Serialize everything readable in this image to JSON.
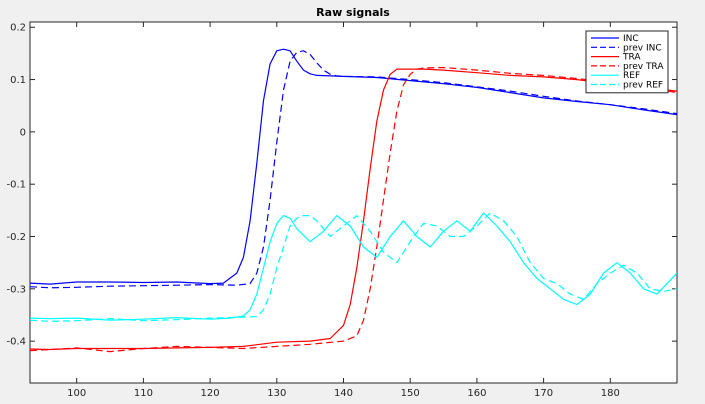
{
  "chart_data": {
    "type": "line",
    "title": "Raw signals",
    "xlabel": "",
    "ylabel": "",
    "xlim": [
      93,
      190
    ],
    "ylim": [
      -0.48,
      0.21
    ],
    "xticks": [
      100,
      110,
      120,
      130,
      140,
      150,
      160,
      170,
      180
    ],
    "yticks": [
      -0.4,
      -0.3,
      -0.2,
      -0.1,
      0,
      0.1,
      0.2
    ],
    "ytick_labels": [
      "-0.4",
      "-0.3",
      "-0.2",
      "-0.1",
      "0",
      "0.1",
      "0.2"
    ],
    "grid": false,
    "legend_position": "top-right",
    "series": [
      {
        "name": "INC",
        "color": "#0000ff",
        "dash": "solid",
        "x": [
          93,
          96,
          100,
          105,
          110,
          115,
          120,
          122,
          124,
          125,
          126,
          127,
          128,
          129,
          130,
          131,
          132,
          133,
          134,
          135,
          136,
          138,
          140,
          145,
          150,
          155,
          160,
          165,
          170,
          175,
          180,
          185,
          190
        ],
        "y": [
          -0.289,
          -0.291,
          -0.287,
          -0.287,
          -0.288,
          -0.287,
          -0.29,
          -0.289,
          -0.27,
          -0.24,
          -0.17,
          -0.06,
          0.06,
          0.13,
          0.155,
          0.158,
          0.155,
          0.135,
          0.118,
          0.111,
          0.108,
          0.107,
          0.106,
          0.104,
          0.098,
          0.092,
          0.085,
          0.075,
          0.065,
          0.058,
          0.052,
          0.042,
          0.033
        ]
      },
      {
        "name": "prev INC",
        "color": "#0000ff",
        "dash": "dashed",
        "x": [
          93,
          96,
          100,
          105,
          110,
          115,
          120,
          124,
          126,
          127,
          128,
          129,
          130,
          131,
          132,
          133,
          134,
          135,
          136,
          137,
          138,
          139,
          140,
          145,
          150,
          155,
          160,
          165,
          170,
          175,
          180,
          185,
          190
        ],
        "y": [
          -0.296,
          -0.298,
          -0.297,
          -0.295,
          -0.294,
          -0.293,
          -0.292,
          -0.293,
          -0.29,
          -0.27,
          -0.22,
          -0.13,
          -0.02,
          0.08,
          0.135,
          0.152,
          0.155,
          0.148,
          0.132,
          0.118,
          0.11,
          0.107,
          0.106,
          0.105,
          0.1,
          0.094,
          0.086,
          0.078,
          0.068,
          0.059,
          0.052,
          0.044,
          0.035
        ]
      },
      {
        "name": "TRA",
        "color": "#ff0000",
        "dash": "solid",
        "x": [
          93,
          96,
          100,
          105,
          110,
          115,
          120,
          125,
          130,
          135,
          138,
          140,
          141,
          142,
          143,
          144,
          145,
          146,
          147,
          148,
          149,
          150,
          152,
          155,
          160,
          165,
          170,
          175,
          180,
          185,
          190
        ],
        "y": [
          -0.415,
          -0.416,
          -0.414,
          -0.414,
          -0.414,
          -0.413,
          -0.412,
          -0.41,
          -0.402,
          -0.4,
          -0.395,
          -0.37,
          -0.33,
          -0.26,
          -0.17,
          -0.07,
          0.02,
          0.08,
          0.11,
          0.12,
          0.12,
          0.12,
          0.12,
          0.118,
          0.113,
          0.108,
          0.105,
          0.1,
          0.092,
          0.085,
          0.078
        ]
      },
      {
        "name": "prev TRA",
        "color": "#ff0000",
        "dash": "dashed",
        "x": [
          93,
          96,
          100,
          105,
          110,
          115,
          120,
          125,
          130,
          135,
          140,
          142,
          143,
          144,
          145,
          146,
          147,
          148,
          149,
          150,
          151,
          152,
          155,
          160,
          165,
          170,
          175,
          180,
          185,
          190
        ],
        "y": [
          -0.418,
          -0.416,
          -0.413,
          -0.42,
          -0.414,
          -0.41,
          -0.412,
          -0.414,
          -0.41,
          -0.406,
          -0.4,
          -0.39,
          -0.36,
          -0.3,
          -0.22,
          -0.13,
          -0.04,
          0.04,
          0.09,
          0.11,
          0.12,
          0.122,
          0.123,
          0.118,
          0.112,
          0.108,
          0.102,
          0.095,
          0.085,
          0.075
        ]
      },
      {
        "name": "REF",
        "color": "#00ffff",
        "dash": "solid",
        "x": [
          93,
          96,
          100,
          105,
          110,
          115,
          120,
          123,
          125,
          126,
          127,
          128,
          129,
          130,
          131,
          132,
          133,
          135,
          137,
          139,
          141,
          143,
          145,
          147,
          149,
          151,
          153,
          155,
          157,
          159,
          161,
          163,
          165,
          167,
          169,
          171,
          173,
          175,
          177,
          179,
          181,
          183,
          185,
          187,
          190
        ],
        "y": [
          -0.356,
          -0.357,
          -0.356,
          -0.36,
          -0.358,
          -0.355,
          -0.358,
          -0.356,
          -0.352,
          -0.34,
          -0.31,
          -0.26,
          -0.21,
          -0.175,
          -0.16,
          -0.165,
          -0.185,
          -0.21,
          -0.19,
          -0.16,
          -0.18,
          -0.22,
          -0.24,
          -0.2,
          -0.17,
          -0.2,
          -0.22,
          -0.19,
          -0.17,
          -0.19,
          -0.155,
          -0.18,
          -0.21,
          -0.25,
          -0.28,
          -0.3,
          -0.32,
          -0.33,
          -0.31,
          -0.27,
          -0.25,
          -0.27,
          -0.3,
          -0.31,
          -0.27
        ]
      },
      {
        "name": "prev REF",
        "color": "#00ffff",
        "dash": "dashed",
        "x": [
          93,
          96,
          100,
          105,
          110,
          115,
          120,
          125,
          127,
          128,
          129,
          130,
          131,
          132,
          133,
          134,
          135,
          136,
          138,
          140,
          142,
          144,
          146,
          148,
          150,
          152,
          154,
          156,
          158,
          160,
          162,
          164,
          166,
          168,
          170,
          172,
          174,
          176,
          178,
          180,
          182,
          184,
          186,
          188,
          190
        ],
        "y": [
          -0.36,
          -0.362,
          -0.361,
          -0.357,
          -0.361,
          -0.359,
          -0.356,
          -0.354,
          -0.353,
          -0.34,
          -0.31,
          -0.26,
          -0.22,
          -0.18,
          -0.165,
          -0.16,
          -0.16,
          -0.17,
          -0.2,
          -0.18,
          -0.16,
          -0.19,
          -0.23,
          -0.25,
          -0.21,
          -0.175,
          -0.18,
          -0.2,
          -0.2,
          -0.18,
          -0.155,
          -0.17,
          -0.2,
          -0.25,
          -0.28,
          -0.29,
          -0.31,
          -0.32,
          -0.29,
          -0.27,
          -0.255,
          -0.27,
          -0.3,
          -0.305,
          -0.3
        ]
      }
    ]
  }
}
